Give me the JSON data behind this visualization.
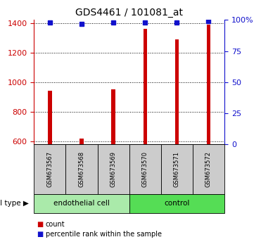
{
  "title": "GDS4461 / 101081_at",
  "samples": [
    "GSM673567",
    "GSM673568",
    "GSM673569",
    "GSM673570",
    "GSM673571",
    "GSM673572"
  ],
  "counts": [
    940,
    620,
    950,
    1360,
    1290,
    1390
  ],
  "percentiles": [
    98,
    97,
    98,
    98,
    98,
    99
  ],
  "ylim_left": [
    580,
    1420
  ],
  "ylim_right": [
    0,
    100
  ],
  "yticks_left": [
    600,
    800,
    1000,
    1200,
    1400
  ],
  "yticks_right": [
    0,
    25,
    50,
    75,
    100
  ],
  "ytick_labels_right": [
    "0",
    "25",
    "50",
    "75",
    "100%"
  ],
  "bar_color": "#cc0000",
  "dot_color": "#1111cc",
  "left_axis_color": "#cc0000",
  "right_axis_color": "#1111cc",
  "groups": [
    {
      "label": "endothelial cell",
      "indices": [
        0,
        1,
        2
      ],
      "color": "#aaeaaa"
    },
    {
      "label": "control",
      "indices": [
        3,
        4,
        5
      ],
      "color": "#55dd55"
    }
  ],
  "cell_type_label": "cell type",
  "legend_count_label": "count",
  "legend_percentile_label": "percentile rank within the sample",
  "bg_color": "#ffffff",
  "sample_box_color": "#cccccc",
  "grid_color": "#000000",
  "title_fontsize": 10,
  "tick_fontsize": 8,
  "bar_width": 0.12
}
